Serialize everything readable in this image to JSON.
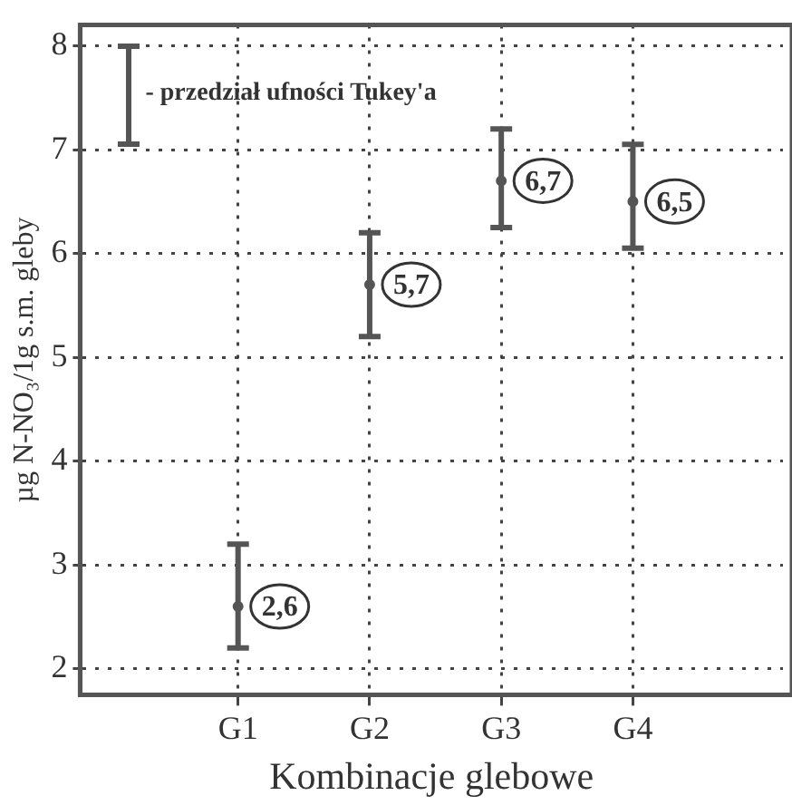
{
  "chart_data": {
    "type": "scatter",
    "xlabel": "Kombinacje glebowe",
    "ylabel": "µg N-NO₃/1g s.m. gleby",
    "categories": [
      "G1",
      "G2",
      "G3",
      "G4"
    ],
    "series": [
      {
        "name": "- przedział ufności Tukey'a",
        "color": "#555555",
        "values": [
          2.6,
          5.7,
          6.7,
          6.5
        ],
        "errors": [
          [
            2.2,
            3.2
          ],
          [
            5.2,
            6.2
          ],
          [
            6.25,
            7.2
          ],
          [
            6.05,
            7.05
          ]
        ],
        "value_labels": [
          "2,6",
          "5,7",
          "6,7",
          "6,5"
        ]
      }
    ],
    "ylim": [
      1.75,
      8.2
    ],
    "yticks": [
      2,
      3,
      4,
      5,
      6,
      7,
      8
    ],
    "grid": true,
    "legend": "top left",
    "marker": "circle"
  }
}
